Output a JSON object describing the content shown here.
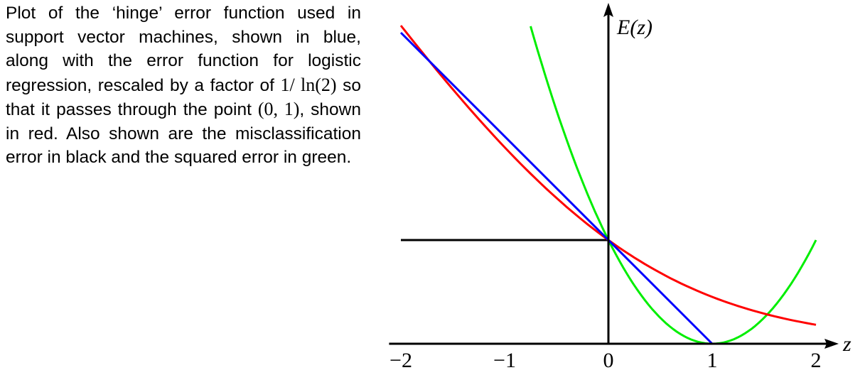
{
  "caption": {
    "part1": "Plot of the ‘hinge’ error function used in support vector machines, shown in blue, along with the error function for logistic regression, rescaled by a factor of ",
    "math1": "1/ ln(2)",
    "part2": " so that it passes through the point ",
    "math2": "(0, 1)",
    "part3": ", shown in red. Also shown are the misclassification error in black and the squared error in green."
  },
  "chart_data": {
    "type": "line",
    "xlabel": "z",
    "ylabel": "E(z)",
    "xlim": [
      -2.1,
      2.2
    ],
    "ylim": [
      0,
      3.2
    ],
    "xticks": [
      {
        "value": -2,
        "label": "−2"
      },
      {
        "value": -1,
        "label": "−1"
      },
      {
        "value": 0,
        "label": "0"
      },
      {
        "value": 1,
        "label": "1"
      },
      {
        "value": 2,
        "label": "2"
      }
    ],
    "series": [
      {
        "color": "#0000ff",
        "description_color": "blue",
        "x": [
          -2,
          1,
          2
        ],
        "y": [
          3,
          0,
          0
        ]
      },
      {
        "color": "#ff0000",
        "description_color": "red",
        "x": [
          -2,
          -1.5,
          -1,
          -0.5,
          0,
          0.5,
          1,
          1.5,
          2
        ],
        "y": [
          3.18,
          2.5,
          1.89,
          1.36,
          1.0,
          0.68,
          0.45,
          0.29,
          0.18
        ]
      },
      {
        "color": "#000000",
        "description_color": "black",
        "x": [
          -2,
          0
        ],
        "y": [
          1,
          1
        ]
      },
      {
        "color": "#00ee00",
        "description_color": "green",
        "x": [
          -0.75,
          -0.5,
          0,
          0.5,
          1,
          1.5,
          2
        ],
        "y": [
          3.06,
          2.25,
          1.0,
          0.25,
          0.0,
          0.25,
          1.0
        ]
      }
    ]
  }
}
